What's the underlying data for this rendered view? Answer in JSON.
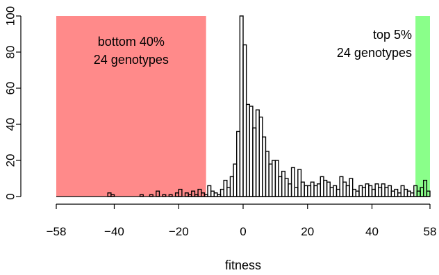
{
  "chart_data": {
    "type": "bar",
    "title": "",
    "xlabel": "fitness",
    "ylabel": "",
    "xlim": [
      -58,
      58
    ],
    "ylim": [
      0,
      100
    ],
    "x_ticks": [
      -58,
      -40,
      -20,
      0,
      20,
      40,
      58
    ],
    "x_tick_labels": [
      "−58",
      "−40",
      "−20",
      "0",
      "20",
      "40",
      "58"
    ],
    "y_ticks": [
      0,
      20,
      40,
      60,
      80,
      100
    ],
    "y_tick_labels": [
      "0",
      "20",
      "40",
      "60",
      "80",
      "100"
    ],
    "bin_width": 1,
    "bins": [
      {
        "x": -42,
        "y": 2
      },
      {
        "x": -41,
        "y": 1
      },
      {
        "x": -32,
        "y": 1
      },
      {
        "x": -29,
        "y": 1
      },
      {
        "x": -27,
        "y": 3
      },
      {
        "x": -25,
        "y": 1
      },
      {
        "x": -23,
        "y": 1
      },
      {
        "x": -21,
        "y": 2
      },
      {
        "x": -20,
        "y": 4
      },
      {
        "x": -18,
        "y": 2
      },
      {
        "x": -17,
        "y": 1
      },
      {
        "x": -16,
        "y": 3
      },
      {
        "x": -15,
        "y": 1
      },
      {
        "x": -14,
        "y": 4
      },
      {
        "x": -13,
        "y": 2
      },
      {
        "x": -12,
        "y": 1
      },
      {
        "x": -11,
        "y": 6
      },
      {
        "x": -10,
        "y": 3
      },
      {
        "x": -9,
        "y": 2
      },
      {
        "x": -8,
        "y": 1
      },
      {
        "x": -7,
        "y": 4
      },
      {
        "x": -6,
        "y": 9
      },
      {
        "x": -5,
        "y": 5
      },
      {
        "x": -4,
        "y": 11
      },
      {
        "x": -3,
        "y": 18
      },
      {
        "x": -2,
        "y": 36
      },
      {
        "x": -1,
        "y": 100
      },
      {
        "x": 0,
        "y": 84
      },
      {
        "x": 1,
        "y": 51
      },
      {
        "x": 2,
        "y": 50
      },
      {
        "x": 3,
        "y": 38
      },
      {
        "x": 4,
        "y": 48
      },
      {
        "x": 5,
        "y": 44
      },
      {
        "x": 6,
        "y": 33
      },
      {
        "x": 7,
        "y": 25
      },
      {
        "x": 8,
        "y": 18
      },
      {
        "x": 9,
        "y": 20
      },
      {
        "x": 10,
        "y": 20
      },
      {
        "x": 11,
        "y": 11
      },
      {
        "x": 12,
        "y": 14
      },
      {
        "x": 13,
        "y": 10
      },
      {
        "x": 14,
        "y": 7
      },
      {
        "x": 15,
        "y": 16
      },
      {
        "x": 16,
        "y": 5
      },
      {
        "x": 17,
        "y": 15
      },
      {
        "x": 18,
        "y": 8
      },
      {
        "x": 19,
        "y": 6
      },
      {
        "x": 20,
        "y": 6
      },
      {
        "x": 21,
        "y": 8
      },
      {
        "x": 22,
        "y": 6
      },
      {
        "x": 23,
        "y": 7
      },
      {
        "x": 24,
        "y": 11
      },
      {
        "x": 25,
        "y": 9
      },
      {
        "x": 26,
        "y": 8
      },
      {
        "x": 27,
        "y": 5
      },
      {
        "x": 28,
        "y": 6
      },
      {
        "x": 29,
        "y": 4
      },
      {
        "x": 30,
        "y": 11
      },
      {
        "x": 31,
        "y": 8
      },
      {
        "x": 32,
        "y": 6
      },
      {
        "x": 33,
        "y": 10
      },
      {
        "x": 34,
        "y": 4
      },
      {
        "x": 35,
        "y": 3
      },
      {
        "x": 36,
        "y": 6
      },
      {
        "x": 37,
        "y": 5
      },
      {
        "x": 38,
        "y": 7
      },
      {
        "x": 39,
        "y": 6
      },
      {
        "x": 40,
        "y": 4
      },
      {
        "x": 41,
        "y": 7
      },
      {
        "x": 42,
        "y": 5
      },
      {
        "x": 43,
        "y": 7
      },
      {
        "x": 44,
        "y": 5
      },
      {
        "x": 45,
        "y": 6
      },
      {
        "x": 46,
        "y": 3
      },
      {
        "x": 47,
        "y": 4
      },
      {
        "x": 48,
        "y": 2
      },
      {
        "x": 49,
        "y": 6
      },
      {
        "x": 50,
        "y": 4
      },
      {
        "x": 51,
        "y": 3
      },
      {
        "x": 52,
        "y": 2
      },
      {
        "x": 53,
        "y": 6
      },
      {
        "x": 54,
        "y": 3
      },
      {
        "x": 55,
        "y": 5
      },
      {
        "x": 56,
        "y": 9
      },
      {
        "x": 57,
        "y": 3
      }
    ],
    "regions": [
      {
        "label_line1": "bottom 40%",
        "label_line2": "24 genotypes",
        "x_from": -58,
        "x_to": -11.5,
        "color": "#ff8a8a"
      },
      {
        "label_line1": "top 5%",
        "label_line2": "24 genotypes",
        "x_from": 53.5,
        "x_to": 58,
        "color": "#8aff8a"
      }
    ],
    "grid": false,
    "legend": "none"
  }
}
